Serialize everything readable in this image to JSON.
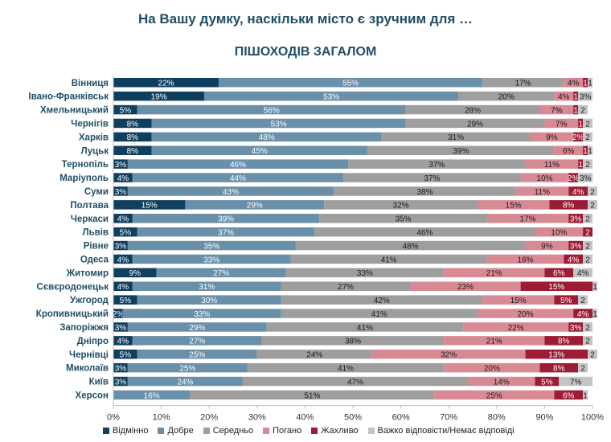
{
  "chart_data": {
    "type": "bar",
    "orientation": "horizontal",
    "stacked": true,
    "title": "На Вашу думку, наскільки місто є зручним для …",
    "subtitle": "ПІШОХОДІВ ЗАГАЛОМ",
    "xlim": [
      0,
      100
    ],
    "x_ticks": [
      "0%",
      "10%",
      "20%",
      "30%",
      "40%",
      "50%",
      "60%",
      "70%",
      "80%",
      "90%",
      "100%"
    ],
    "grid": false,
    "legend_position": "bottom",
    "categories": [
      "Вінниця",
      "Івано-Франківськ",
      "Хмельницький",
      "Чернігів",
      "Харків",
      "Луцьк",
      "Тернопіль",
      "Маріуполь",
      "Суми",
      "Полтава",
      "Черкаси",
      "Львів",
      "Рівне",
      "Одеса",
      "Житомир",
      "Сєвєродонецьк",
      "Ужгород",
      "Кропивницький",
      "Запоріжжя",
      "Дніпро",
      "Чернівці",
      "Миколаїв",
      "Київ",
      "Херсон"
    ],
    "series": [
      {
        "name": "Відмінно",
        "color": "#0f3f5e",
        "values": [
          22,
          19,
          5,
          8,
          8,
          8,
          3,
          4,
          3,
          15,
          4,
          5,
          3,
          4,
          9,
          4,
          5,
          2,
          3,
          4,
          5,
          3,
          3,
          0
        ]
      },
      {
        "name": "Добре",
        "color": "#6a8fa8",
        "values": [
          55,
          53,
          56,
          53,
          48,
          45,
          46,
          44,
          43,
          29,
          39,
          37,
          35,
          33,
          27,
          31,
          30,
          33,
          29,
          27,
          25,
          25,
          24,
          16
        ]
      },
      {
        "name": "Середньо",
        "color": "#9e9e9e",
        "values": [
          17,
          20,
          28,
          29,
          31,
          39,
          37,
          37,
          38,
          32,
          35,
          46,
          48,
          41,
          33,
          27,
          42,
          41,
          41,
          38,
          24,
          41,
          47,
          51
        ]
      },
      {
        "name": "Погано",
        "color": "#d88a94",
        "values": [
          4,
          4,
          7,
          7,
          9,
          6,
          11,
          10,
          11,
          15,
          17,
          10,
          9,
          16,
          21,
          23,
          15,
          20,
          22,
          21,
          32,
          20,
          14,
          25
        ]
      },
      {
        "name": "Жахливо",
        "color": "#9c1c35",
        "values": [
          1,
          1,
          1,
          1,
          2,
          1,
          1,
          2,
          4,
          8,
          3,
          2,
          3,
          4,
          6,
          15,
          5,
          4,
          3,
          8,
          13,
          8,
          5,
          6
        ]
      },
      {
        "name": "Важко відповісти/Немає відповіді",
        "color": "#c4c4c4",
        "values": [
          1,
          3,
          2,
          2,
          2,
          1,
          2,
          3,
          2,
          2,
          2,
          0,
          2,
          2,
          4,
          1,
          2,
          1,
          2,
          2,
          2,
          2,
          7,
          1
        ]
      }
    ],
    "labels": [
      [
        "22%",
        "55%",
        "17%",
        "4%",
        "1",
        "1"
      ],
      [
        "19%",
        "53%",
        "20%",
        "4%",
        "1",
        "3%"
      ],
      [
        "5%",
        "56%",
        "28%",
        "7%",
        "1",
        "2"
      ],
      [
        "8%",
        "53%",
        "29%",
        "7%",
        "1",
        "2"
      ],
      [
        "8%",
        "48%",
        "31%",
        "9%",
        "2%",
        "2"
      ],
      [
        "8%",
        "45%",
        "39%",
        "6%",
        "1",
        "1"
      ],
      [
        "3%",
        "46%",
        "37%",
        "11%",
        "1",
        "2"
      ],
      [
        "4%",
        "44%",
        "37%",
        "10%",
        "2%",
        "3%"
      ],
      [
        "3%",
        "43%",
        "38%",
        "11%",
        "4%",
        "2"
      ],
      [
        "15%",
        "29%",
        "32%",
        "15%",
        "8%",
        "2"
      ],
      [
        "4%",
        "39%",
        "35%",
        "17%",
        "3%",
        "2"
      ],
      [
        "5%",
        "37%",
        "46%",
        "10%",
        "2",
        ""
      ],
      [
        "3%",
        "35%",
        "48%",
        "9%",
        "3%",
        "2"
      ],
      [
        "4%",
        "33%",
        "41%",
        "16%",
        "4%",
        "2"
      ],
      [
        "9%",
        "27%",
        "33%",
        "21%",
        "6%",
        "4%"
      ],
      [
        "4%",
        "31%",
        "27%",
        "23%",
        "15%",
        "1"
      ],
      [
        "5%",
        "30%",
        "42%",
        "15%",
        "5%",
        "2"
      ],
      [
        "2%",
        "33%",
        "41%",
        "20%",
        "4%",
        "1"
      ],
      [
        "3%",
        "29%",
        "41%",
        "22%",
        "3%",
        "2"
      ],
      [
        "4%",
        "27%",
        "38%",
        "21%",
        "8%",
        "2"
      ],
      [
        "5%",
        "25%",
        "24%",
        "32%",
        "13%",
        "2"
      ],
      [
        "3%",
        "25%",
        "41%",
        "20%",
        "8%",
        "2"
      ],
      [
        "3%",
        "24%",
        "47%",
        "14%",
        "5%",
        "7%"
      ],
      [
        "",
        "16%",
        "51%",
        "25%",
        "6%",
        "1"
      ]
    ]
  }
}
